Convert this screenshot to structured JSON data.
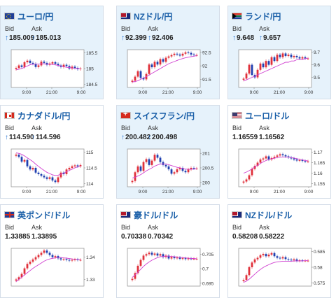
{
  "colors": {
    "accent": "#1a5fa8",
    "up_arrow": "#1f6fd1",
    "candle_up": "#e0303a",
    "candle_down": "#2040b0",
    "moving_average": "#d040d0",
    "highlight_bg": "#e6f2fb"
  },
  "labels": {
    "bid": "Bid",
    "ask": "Ask",
    "arrow": "↑"
  },
  "cards": [
    {
      "flag": "eu",
      "pair": "ユーロ/円",
      "bid": "185.009",
      "ask": "185.013",
      "arrow": true,
      "highlight": true,
      "chart_data": {
        "type": "candlestick",
        "yticks": [
          "185.5",
          "185",
          "184.5"
        ],
        "ylim": [
          184.4,
          185.6
        ],
        "xticks": [
          "9:00",
          "21:00",
          "9:00"
        ],
        "closes": [
          185.02,
          185.1,
          185.05,
          185.2,
          185.25,
          185.18,
          185.15,
          185.05,
          185.1,
          185.22,
          185.18,
          185.12,
          185.16,
          185.2,
          185.15,
          185.1,
          185.05,
          185.12,
          185.08,
          185.0,
          185.06,
          185.02,
          184.98,
          185.0
        ],
        "ma": [
          184.96,
          184.98,
          185.0,
          185.04,
          185.08,
          185.12,
          185.14,
          185.14,
          185.14,
          185.15,
          185.15,
          185.14,
          185.14,
          185.13,
          185.12,
          185.1,
          185.08,
          185.06,
          185.04,
          185.03,
          185.02,
          185.01,
          185.0,
          184.99
        ]
      }
    },
    {
      "flag": "nz",
      "pair": "NZドル/円",
      "bid": "92.399",
      "ask": "92.406",
      "arrow": true,
      "highlight": true,
      "chart_data": {
        "type": "candlestick",
        "yticks": [
          "92.5",
          "92",
          "91.5"
        ],
        "ylim": [
          91.2,
          92.6
        ],
        "xticks": [
          "9:00",
          "21:00",
          "9:00"
        ],
        "closes": [
          91.45,
          91.6,
          91.8,
          91.55,
          91.5,
          91.7,
          92.05,
          91.95,
          92.15,
          92.05,
          92.25,
          92.15,
          92.3,
          92.35,
          92.4,
          92.45,
          92.42,
          92.38,
          92.45,
          92.5,
          92.48,
          92.42,
          92.4,
          92.4
        ],
        "ma": [
          91.4,
          91.42,
          91.45,
          91.5,
          91.55,
          91.6,
          91.66,
          91.72,
          91.78,
          91.84,
          91.9,
          91.96,
          92.02,
          92.08,
          92.12,
          92.16,
          92.2,
          92.24,
          92.27,
          92.3,
          92.32,
          92.34,
          92.36,
          92.38
        ]
      }
    },
    {
      "flag": "za",
      "pair": "ランド/円",
      "bid": "9.648",
      "ask": "9.657",
      "arrow": true,
      "highlight": true,
      "chart_data": {
        "type": "candlestick",
        "yticks": [
          "9.7",
          "9.6",
          "9.5"
        ],
        "ylim": [
          9.42,
          9.72
        ],
        "xticks": [
          "9:00",
          "21:00",
          "9:00"
        ],
        "closes": [
          9.49,
          9.53,
          9.6,
          9.52,
          9.5,
          9.56,
          9.61,
          9.58,
          9.63,
          9.6,
          9.66,
          9.63,
          9.68,
          9.66,
          9.69,
          9.67,
          9.68,
          9.66,
          9.67,
          9.66,
          9.65,
          9.66,
          9.65,
          9.65
        ],
        "ma": [
          9.47,
          9.48,
          9.49,
          9.5,
          9.51,
          9.52,
          9.53,
          9.54,
          9.55,
          9.56,
          9.57,
          9.58,
          9.59,
          9.6,
          9.61,
          9.62,
          9.62,
          9.63,
          9.63,
          9.64,
          9.64,
          9.64,
          9.65,
          9.65
        ]
      }
    },
    {
      "flag": "ca",
      "pair": "カナダドル/円",
      "bid": "114.590",
      "ask": "114.596",
      "arrow": true,
      "highlight": false,
      "chart_data": {
        "type": "candlestick",
        "yticks": [
          "115",
          "114.5",
          "114"
        ],
        "ylim": [
          113.9,
          115.1
        ],
        "xticks": [
          "9:00",
          "21:00",
          "9:00"
        ],
        "closes": [
          114.92,
          114.85,
          114.7,
          114.75,
          114.55,
          114.45,
          114.5,
          114.35,
          114.3,
          114.25,
          114.2,
          114.15,
          114.2,
          114.1,
          114.05,
          114.2,
          114.35,
          114.3,
          114.45,
          114.5,
          114.55,
          114.58,
          114.55,
          114.59
        ],
        "ma": [
          114.98,
          114.96,
          114.93,
          114.88,
          114.82,
          114.76,
          114.7,
          114.62,
          114.55,
          114.48,
          114.42,
          114.36,
          114.32,
          114.28,
          114.26,
          114.27,
          114.3,
          114.33,
          114.38,
          114.42,
          114.46,
          114.5,
          114.53,
          114.56
        ]
      }
    },
    {
      "flag": "ch",
      "pair": "スイスフラン/円",
      "bid": "200.482",
      "ask": "200.498",
      "arrow": true,
      "highlight": true,
      "chart_data": {
        "type": "candlestick",
        "yticks": [
          "201",
          "200.5",
          "200"
        ],
        "ylim": [
          199.85,
          201.15
        ],
        "xticks": [
          "9:00",
          "21:00",
          "9:00"
        ],
        "closes": [
          200.05,
          200.35,
          200.55,
          200.4,
          200.7,
          200.8,
          200.6,
          200.75,
          200.95,
          200.85,
          200.7,
          200.6,
          200.55,
          200.45,
          200.3,
          200.35,
          200.45,
          200.5,
          200.4,
          200.35,
          200.45,
          200.5,
          200.48,
          200.48
        ],
        "ma": [
          200.15,
          200.18,
          200.22,
          200.27,
          200.33,
          200.4,
          200.45,
          200.5,
          200.56,
          200.6,
          200.63,
          200.64,
          200.63,
          200.61,
          200.58,
          200.55,
          200.52,
          200.5,
          200.48,
          200.46,
          200.45,
          200.45,
          200.46,
          200.47
        ]
      }
    },
    {
      "flag": "us",
      "pair": "ユーロ/ドル",
      "bid": "1.16559",
      "ask": "1.16562",
      "arrow": false,
      "highlight": false,
      "chart_data": {
        "type": "candlestick",
        "yticks": [
          "1.17",
          "1.165",
          "1.16",
          "1.155"
        ],
        "ylim": [
          1.1535,
          1.1715
        ],
        "xticks": [
          "9:00",
          "21:00",
          "9:00"
        ],
        "closes": [
          1.156,
          1.157,
          1.159,
          1.162,
          1.1635,
          1.165,
          1.1665,
          1.167,
          1.168,
          1.1665,
          1.1672,
          1.1678,
          1.1684,
          1.169,
          1.1685,
          1.168,
          1.1675,
          1.167,
          1.1665,
          1.166,
          1.1662,
          1.1658,
          1.1655,
          1.1656
        ],
        "ma": [
          1.16,
          1.1605,
          1.1612,
          1.162,
          1.163,
          1.1638,
          1.1646,
          1.1654,
          1.166,
          1.1665,
          1.1668,
          1.1671,
          1.1674,
          1.1676,
          1.1677,
          1.1677,
          1.1676,
          1.1674,
          1.1672,
          1.1669,
          1.1666,
          1.1663,
          1.166,
          1.1658
        ]
      }
    },
    {
      "flag": "gb",
      "pair": "英ポンド/ドル",
      "bid": "1.33885",
      "ask": "1.33895",
      "arrow": false,
      "highlight": false,
      "chart_data": {
        "type": "candlestick",
        "yticks": [
          "1.34",
          "1.33"
        ],
        "ylim": [
          1.327,
          1.344
        ],
        "xticks": [],
        "closes": [
          1.33,
          1.331,
          1.3325,
          1.335,
          1.337,
          1.338,
          1.339,
          1.34,
          1.341,
          1.342,
          1.343,
          1.342,
          1.341,
          1.34,
          1.3405,
          1.3395,
          1.339,
          1.3392,
          1.3388,
          1.3385,
          1.3388,
          1.339,
          1.3388,
          1.3388
        ],
        "ma": [
          1.329,
          1.33,
          1.331,
          1.332,
          1.333,
          1.334,
          1.335,
          1.3358,
          1.3366,
          1.3374,
          1.3382,
          1.3388,
          1.3392,
          1.3395,
          1.3397,
          1.3398,
          1.3398,
          1.3397,
          1.3396,
          1.3394,
          1.3392,
          1.3391,
          1.339,
          1.3389
        ]
      }
    },
    {
      "flag": "au",
      "pair": "豪ドル/ドル",
      "bid": "0.70338",
      "ask": "0.70342",
      "arrow": false,
      "highlight": false,
      "chart_data": {
        "type": "candlestick",
        "yticks": [
          "0.705",
          "0.7",
          "0.695"
        ],
        "ylim": [
          0.694,
          0.707
        ],
        "xticks": [],
        "closes": [
          0.6965,
          0.6985,
          0.701,
          0.703,
          0.7045,
          0.705,
          0.7055,
          0.7048,
          0.7052,
          0.7045,
          0.705,
          0.704,
          0.7045,
          0.7035,
          0.704,
          0.7036,
          0.7038,
          0.7034,
          0.7036,
          0.7033,
          0.7035,
          0.7034,
          0.7034,
          0.7034
        ],
        "ma": [
          0.697,
          0.6978,
          0.6988,
          0.6998,
          0.7008,
          0.7016,
          0.7023,
          0.7029,
          0.7034,
          0.7038,
          0.7041,
          0.7042,
          0.7043,
          0.7043,
          0.7042,
          0.7041,
          0.704,
          0.7039,
          0.7038,
          0.7037,
          0.7036,
          0.7035,
          0.7035,
          0.7034
        ]
      }
    },
    {
      "flag": "nz",
      "pair": "NZドル/ドル",
      "bid": "0.58208",
      "ask": "0.58222",
      "arrow": false,
      "highlight": false,
      "chart_data": {
        "type": "candlestick",
        "yticks": [
          "0.585",
          "0.58",
          "0.575"
        ],
        "ylim": [
          0.574,
          0.586
        ],
        "xticks": [],
        "closes": [
          0.576,
          0.5775,
          0.58,
          0.5815,
          0.5825,
          0.583,
          0.5838,
          0.5842,
          0.5835,
          0.584,
          0.5845,
          0.5835,
          0.583,
          0.5828,
          0.5832,
          0.5826,
          0.5824,
          0.5822,
          0.5825,
          0.582,
          0.5822,
          0.5821,
          0.5821,
          0.5821
        ],
        "ma": [
          0.5752,
          0.5756,
          0.5762,
          0.577,
          0.5778,
          0.5786,
          0.5793,
          0.5799,
          0.5804,
          0.5808,
          0.5812,
          0.5815,
          0.5817,
          0.5818,
          0.5819,
          0.5819,
          0.5819,
          0.5819,
          0.582,
          0.582,
          0.582,
          0.582,
          0.5821,
          0.5821
        ]
      }
    }
  ]
}
